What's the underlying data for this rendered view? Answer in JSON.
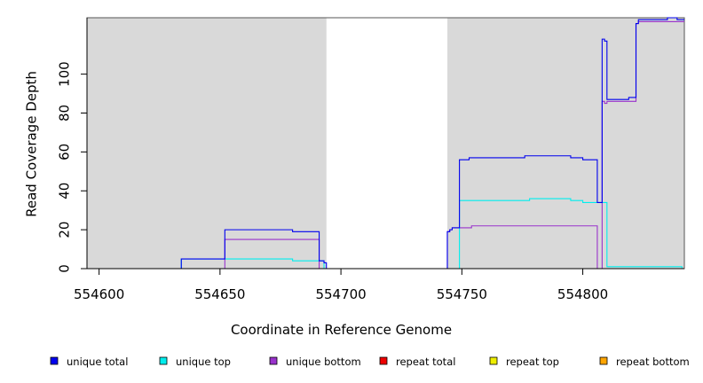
{
  "chart_data": {
    "type": "line",
    "title": "",
    "xlabel": "Coordinate in Reference Genome",
    "ylabel": "Read Coverage Depth",
    "xlim": [
      554595,
      554842
    ],
    "ylim": [
      0,
      129
    ],
    "x_ticks": [
      554600,
      554650,
      554700,
      554750,
      554800
    ],
    "y_ticks": [
      0,
      20,
      40,
      60,
      80,
      100
    ],
    "shaded_regions": [
      [
        554595,
        554694
      ],
      [
        554744,
        554842
      ]
    ],
    "shade_color": "#d9d9d9",
    "grid": false,
    "legend_position": "bottom",
    "series": [
      {
        "name": "unique total",
        "color": "#0000ee",
        "points": [
          [
            554600,
            0
          ],
          [
            554634,
            0
          ],
          [
            554634,
            5
          ],
          [
            554652,
            5
          ],
          [
            554652,
            20
          ],
          [
            554680,
            20
          ],
          [
            554680,
            19
          ],
          [
            554691,
            19
          ],
          [
            554691,
            4
          ],
          [
            554693,
            4
          ],
          [
            554693,
            3
          ],
          [
            554694,
            3
          ],
          [
            554694,
            0
          ],
          [
            554744,
            0
          ],
          [
            554744,
            19
          ],
          [
            554745,
            19
          ],
          [
            554745,
            20
          ],
          [
            554746,
            20
          ],
          [
            554746,
            21
          ],
          [
            554749,
            21
          ],
          [
            554749,
            56
          ],
          [
            554753,
            56
          ],
          [
            554753,
            57
          ],
          [
            554776,
            57
          ],
          [
            554776,
            58
          ],
          [
            554795,
            58
          ],
          [
            554795,
            57
          ],
          [
            554800,
            57
          ],
          [
            554800,
            56
          ],
          [
            554806,
            56
          ],
          [
            554806,
            34
          ],
          [
            554808,
            34
          ],
          [
            554808,
            118
          ],
          [
            554809,
            118
          ],
          [
            554809,
            117
          ],
          [
            554810,
            117
          ],
          [
            554810,
            87
          ],
          [
            554819,
            87
          ],
          [
            554819,
            88
          ],
          [
            554822,
            88
          ],
          [
            554822,
            126
          ],
          [
            554823,
            126
          ],
          [
            554823,
            128
          ],
          [
            554835,
            128
          ],
          [
            554835,
            129
          ],
          [
            554839,
            129
          ],
          [
            554839,
            128
          ],
          [
            554842,
            128
          ]
        ]
      },
      {
        "name": "unique top",
        "color": "#00eeee",
        "points": [
          [
            554600,
            0
          ],
          [
            554634,
            0
          ],
          [
            554634,
            5
          ],
          [
            554680,
            5
          ],
          [
            554680,
            4
          ],
          [
            554693,
            4
          ],
          [
            554693,
            0
          ],
          [
            554744,
            0
          ],
          [
            554749,
            0
          ],
          [
            554749,
            35
          ],
          [
            554778,
            35
          ],
          [
            554778,
            36
          ],
          [
            554795,
            36
          ],
          [
            554795,
            35
          ],
          [
            554800,
            35
          ],
          [
            554800,
            34
          ],
          [
            554810,
            34
          ],
          [
            554810,
            1
          ],
          [
            554841,
            1
          ],
          [
            554841,
            0
          ],
          [
            554842,
            0
          ]
        ]
      },
      {
        "name": "unique bottom",
        "color": "#9932cc",
        "points": [
          [
            554600,
            0
          ],
          [
            554652,
            0
          ],
          [
            554652,
            15
          ],
          [
            554691,
            15
          ],
          [
            554691,
            0
          ],
          [
            554744,
            0
          ],
          [
            554744,
            19
          ],
          [
            554745,
            19
          ],
          [
            554745,
            20
          ],
          [
            554746,
            20
          ],
          [
            554746,
            21
          ],
          [
            554754,
            21
          ],
          [
            554754,
            22
          ],
          [
            554806,
            22
          ],
          [
            554806,
            0
          ],
          [
            554808,
            0
          ],
          [
            554808,
            86
          ],
          [
            554809,
            86
          ],
          [
            554809,
            85
          ],
          [
            554810,
            85
          ],
          [
            554810,
            86
          ],
          [
            554822,
            86
          ],
          [
            554822,
            126
          ],
          [
            554823,
            126
          ],
          [
            554823,
            127
          ],
          [
            554842,
            127
          ]
        ]
      },
      {
        "name": "repeat total",
        "color": "#ee0000",
        "points": [
          [
            554600,
            0
          ],
          [
            554694,
            0
          ],
          [
            554744,
            0
          ],
          [
            554842,
            0
          ]
        ]
      },
      {
        "name": "repeat top",
        "color": "#eeee00",
        "points": [
          [
            554600,
            0
          ],
          [
            554694,
            0
          ],
          [
            554744,
            0
          ],
          [
            554842,
            0
          ]
        ]
      },
      {
        "name": "repeat bottom",
        "color": "#ffa500",
        "points": [
          [
            554600,
            0
          ],
          [
            554694,
            0
          ],
          [
            554744,
            0
          ],
          [
            554842,
            0
          ]
        ]
      }
    ]
  }
}
